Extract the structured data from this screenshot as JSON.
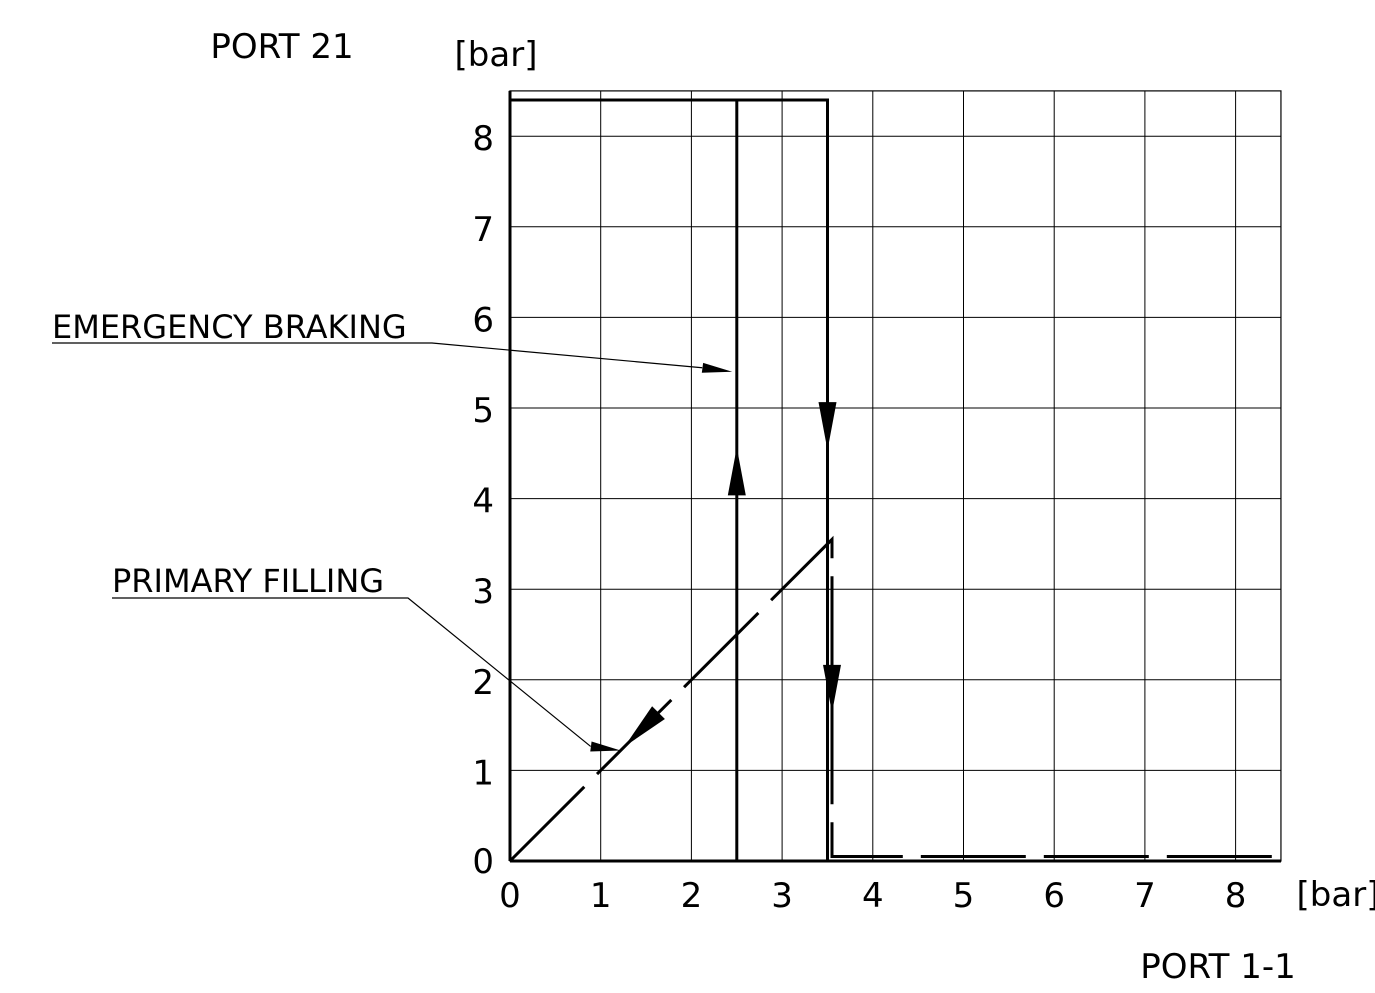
{
  "chart_data": {
    "type": "line",
    "x_axis": {
      "unit": "[bar]",
      "name": "PORT 1-1",
      "range": [
        0,
        8.5
      ],
      "ticks": [
        0,
        1,
        2,
        3,
        4,
        5,
        6,
        7,
        8
      ]
    },
    "y_axis": {
      "unit": "[bar]",
      "name": "PORT 21",
      "range": [
        0,
        8.5
      ],
      "ticks": [
        0,
        1,
        2,
        3,
        4,
        5,
        6,
        7,
        8
      ]
    },
    "grid": true,
    "series": [
      {
        "style": "solid",
        "points": [
          [
            0,
            8.4
          ],
          [
            3.5,
            8.4
          ],
          [
            3.5,
            0
          ],
          [
            8.5,
            0
          ]
        ],
        "direction_arrows": [
          [
            3.5,
            4.8
          ]
        ]
      },
      {
        "style": "solid",
        "points": [
          [
            2.5,
            0
          ],
          [
            2.5,
            8.4
          ]
        ],
        "direction_arrows": [
          [
            2.5,
            4.3
          ]
        ]
      },
      {
        "style": "dashed",
        "points": [
          [
            0,
            0
          ],
          [
            3.55,
            3.55
          ],
          [
            3.55,
            0.05
          ],
          [
            8.5,
            0.05
          ]
        ],
        "direction_arrows": [
          [
            1.45,
            1.45
          ],
          [
            3.55,
            1.9
          ]
        ]
      }
    ],
    "annotations": [
      {
        "text": "EMERGENCY BRAKING",
        "target": [
          2.45,
          5.4
        ]
      },
      {
        "text": "PRIMARY FILLING",
        "target": [
          1.22,
          1.22
        ]
      }
    ]
  }
}
